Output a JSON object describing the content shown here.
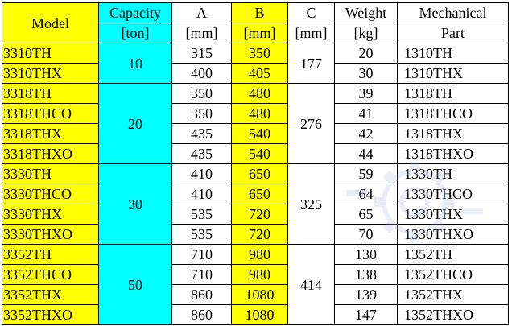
{
  "headers": {
    "model": "Model",
    "capacity": "Capacity",
    "capacity_unit": "[ton]",
    "a": "A",
    "a_unit": "[mm]",
    "b": "B",
    "b_unit": "[mm]",
    "c": "C",
    "c_unit": "[mm]",
    "weight": "Weight",
    "weight_unit": "[kg]",
    "mech_line1": "Mechanical",
    "mech_line2": "Part"
  },
  "groups": [
    {
      "capacity": "10",
      "c": "177",
      "rows": [
        {
          "model": "3310TH",
          "a": "315",
          "b": "350",
          "weight": "20",
          "part": "1310TH"
        },
        {
          "model": "3310THX",
          "a": "400",
          "b": "405",
          "weight": "30",
          "part": "1310THX"
        }
      ]
    },
    {
      "capacity": "20",
      "c": "276",
      "rows": [
        {
          "model": "3318TH",
          "a": "350",
          "b": "480",
          "weight": "39",
          "part": "1318TH"
        },
        {
          "model": "3318THCO",
          "a": "350",
          "b": "480",
          "weight": "41",
          "part": "1318THCO"
        },
        {
          "model": "3318THX",
          "a": "435",
          "b": "540",
          "weight": "42",
          "part": "1318THX"
        },
        {
          "model": "3318THXO",
          "a": "435",
          "b": "540",
          "weight": "44",
          "part": "1318THXO"
        }
      ]
    },
    {
      "capacity": "30",
      "c": "325",
      "rows": [
        {
          "model": "3330TH",
          "a": "410",
          "b": "650",
          "weight": "59",
          "part": "1330TH"
        },
        {
          "model": "3330THCO",
          "a": "410",
          "b": "650",
          "weight": "64",
          "part": "1330THCO"
        },
        {
          "model": "3330THX",
          "a": "535",
          "b": "720",
          "weight": "65",
          "part": "1330THX"
        },
        {
          "model": "3330THXO",
          "a": "535",
          "b": "720",
          "weight": "70",
          "part": "1330THXO"
        }
      ]
    },
    {
      "capacity": "50",
      "c": "414",
      "rows": [
        {
          "model": "3352TH",
          "a": "710",
          "b": "980",
          "weight": "130",
          "part": "1352TH"
        },
        {
          "model": "3352THCO",
          "a": "710",
          "b": "980",
          "weight": "138",
          "part": "1352THCO"
        },
        {
          "model": "3352THX",
          "a": "860",
          "b": "1080",
          "weight": "139",
          "part": "1352THX"
        },
        {
          "model": "3352THXO",
          "a": "860",
          "b": "1080",
          "weight": "147",
          "part": "1352THXO"
        }
      ]
    }
  ],
  "colors": {
    "highlight_yellow": "#ffff00",
    "highlight_cyan": "#00ffff",
    "border": "#000000",
    "watermark": "#9fb4d8"
  },
  "watermark_icon": "gear-logo-icon"
}
